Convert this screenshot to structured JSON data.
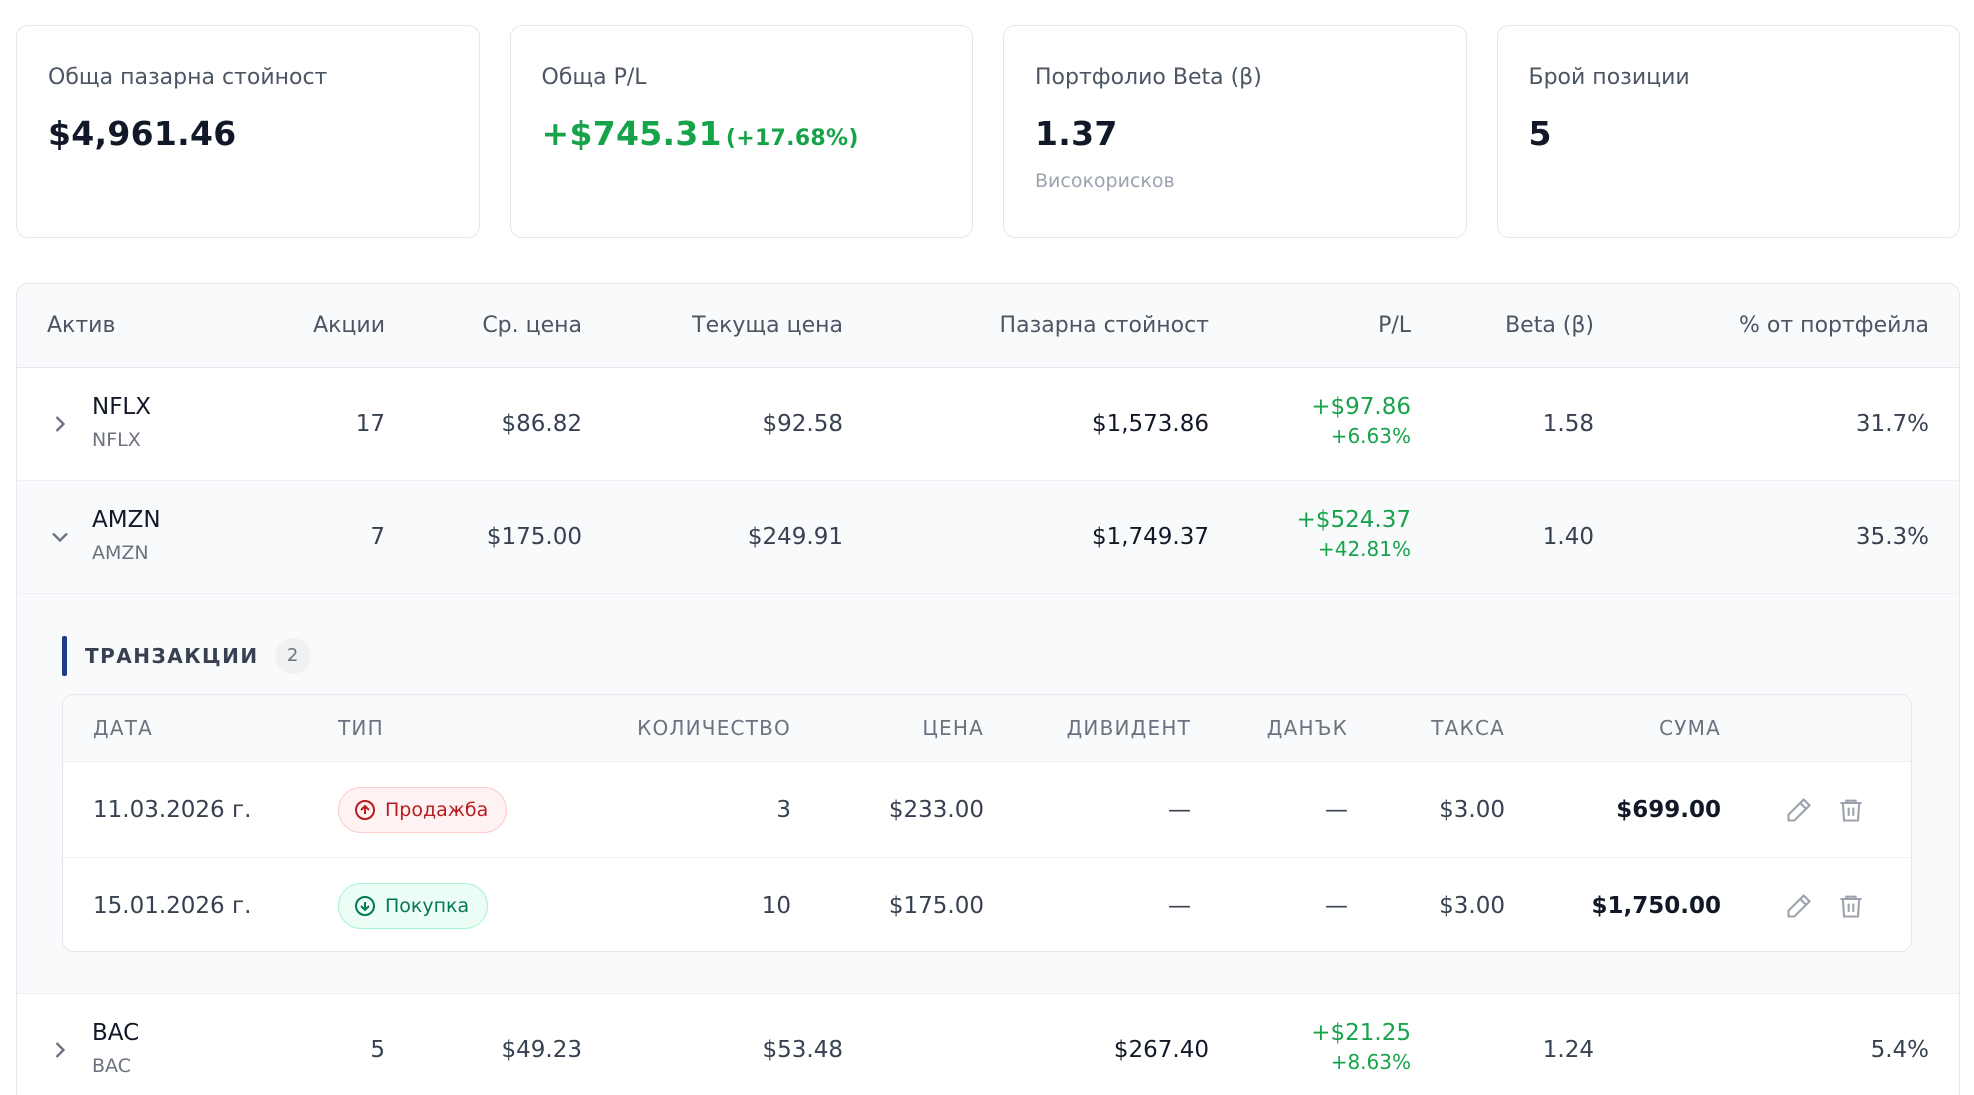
{
  "summary": {
    "total_market_value": {
      "label": "Обща пазарна стойност",
      "value": "$4,961.46"
    },
    "total_pl": {
      "label": "Обща P/L",
      "value": "+$745.31",
      "percent": "(+17.68%)"
    },
    "portfolio_beta": {
      "label": "Портфолио Beta (β)",
      "value": "1.37",
      "note": "Високорисков"
    },
    "positions_count": {
      "label": "Брой позиции",
      "value": "5"
    }
  },
  "table": {
    "headers": {
      "asset": "Актив",
      "shares": "Акции",
      "avg_price": "Ср. цена",
      "current_price": "Текуща цена",
      "market_value": "Пазарна стойност",
      "pl": "P/L",
      "beta": "Beta (β)",
      "portfolio_pct": "% от портфейла"
    },
    "rows": [
      {
        "symbol": "NFLX",
        "name": "NFLX",
        "shares": "17",
        "avg_price": "$86.82",
        "current_price": "$92.58",
        "market_value": "$1,573.86",
        "pl_amount": "+$97.86",
        "pl_percent": "+6.63%",
        "beta": "1.58",
        "portfolio_pct": "31.7%"
      },
      {
        "symbol": "AMZN",
        "name": "AMZN",
        "shares": "7",
        "avg_price": "$175.00",
        "current_price": "$249.91",
        "market_value": "$1,749.37",
        "pl_amount": "+$524.37",
        "pl_percent": "+42.81%",
        "beta": "1.40",
        "portfolio_pct": "35.3%"
      },
      {
        "symbol": "BAC",
        "name": "BAC",
        "shares": "5",
        "avg_price": "$49.23",
        "current_price": "$53.48",
        "market_value": "$267.40",
        "pl_amount": "+$21.25",
        "pl_percent": "+8.63%",
        "beta": "1.24",
        "portfolio_pct": "5.4%"
      }
    ]
  },
  "transactions": {
    "title": "ТРАНЗАКЦИИ",
    "count": "2",
    "headers": {
      "date": "ДАТА",
      "type": "ТИП",
      "quantity": "КОЛИЧЕСТВО",
      "price": "ЦЕНА",
      "dividend": "ДИВИДЕНТ",
      "tax": "ДАНЪК",
      "fee": "ТАКСА",
      "total": "СУМА"
    },
    "rows": [
      {
        "date": "11.03.2026 г.",
        "type": "Продажба",
        "quantity": "3",
        "price": "$233.00",
        "dividend": "—",
        "tax": "—",
        "fee": "$3.00",
        "total": "$699.00"
      },
      {
        "date": "15.01.2026 г.",
        "type": "Покупка",
        "quantity": "10",
        "price": "$175.00",
        "dividend": "—",
        "tax": "—",
        "fee": "$3.00",
        "total": "$1,750.00"
      }
    ]
  },
  "colors": {
    "positive": "#16a34a",
    "sell_badge": "#b91c1c",
    "buy_badge": "#047857",
    "accent_bar": "#1e3a8a"
  }
}
